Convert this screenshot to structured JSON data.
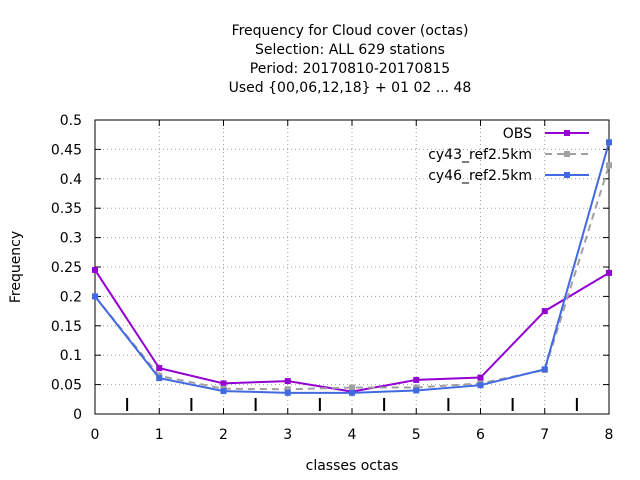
{
  "chart_data": {
    "type": "line",
    "title_lines": [
      "Frequency  for Cloud cover (octas)",
      "Selection: ALL    629 stations",
      "Period: 20170810-20170815",
      "Used {00,06,12,18} + 01 02 ... 48"
    ],
    "xlabel": "classes octas",
    "ylabel": "Frequency",
    "x": [
      0,
      1,
      2,
      3,
      4,
      5,
      6,
      7,
      8
    ],
    "x_ticks": [
      "0",
      "1",
      "2",
      "3",
      "4",
      "5",
      "6",
      "7",
      "8"
    ],
    "y_ticks": [
      "0",
      "0.05",
      "0.1",
      "0.15",
      "0.2",
      "0.25",
      "0.3",
      "0.35",
      "0.4",
      "0.45",
      "0.5"
    ],
    "xlim": [
      0,
      8
    ],
    "ylim": [
      0,
      0.5
    ],
    "grid": true,
    "legend_position": "top-right",
    "series": [
      {
        "name": "OBS",
        "color": "#9400d3",
        "dashed": false,
        "values": [
          0.245,
          0.078,
          0.052,
          0.056,
          0.038,
          0.058,
          0.062,
          0.175,
          0.24
        ]
      },
      {
        "name": "cy43_ref2.5km",
        "color": "#a0a0a0",
        "dashed": true,
        "values": [
          0.2,
          0.065,
          0.043,
          0.042,
          0.045,
          0.045,
          0.052,
          0.075,
          0.423
        ]
      },
      {
        "name": "cy46_ref2.5km",
        "color": "#4169e1",
        "dashed": false,
        "values": [
          0.2,
          0.061,
          0.039,
          0.036,
          0.036,
          0.04,
          0.049,
          0.076,
          0.462
        ]
      }
    ]
  }
}
